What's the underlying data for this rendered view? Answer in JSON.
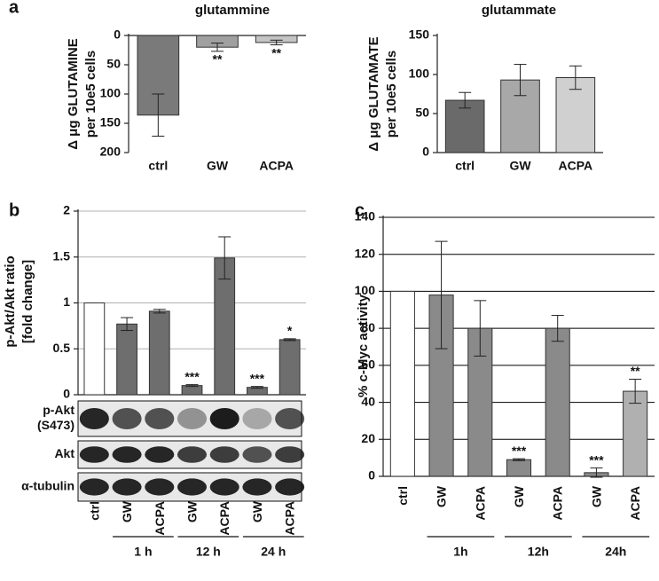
{
  "chart_data": [
    {
      "type": "bar",
      "panel_label": "a",
      "title": "glutammine",
      "y_label": [
        "Δ μg GLUTAMINE",
        "per 10e5 cells"
      ],
      "categories": [
        "ctrl",
        "GW",
        "ACPA"
      ],
      "values": [
        136,
        20,
        12
      ],
      "errors": [
        36,
        7,
        4
      ],
      "colors": [
        "#7a7a7a",
        "#a0a0a0",
        "#c4c4c4"
      ],
      "significance": [
        null,
        "**",
        "**"
      ],
      "ylim": [
        0,
        200
      ],
      "yticks": [
        0,
        50,
        100,
        150,
        200
      ],
      "y_inverted": true,
      "grid": false
    },
    {
      "type": "bar",
      "title": "glutammate",
      "y_label": [
        "Δ μg GLUTAMATE",
        "per 10e5 cells"
      ],
      "categories": [
        "ctrl",
        "GW",
        "ACPA"
      ],
      "values": [
        67,
        93,
        96
      ],
      "errors": [
        10,
        20,
        15
      ],
      "colors": [
        "#6a6a6a",
        "#a8a8a8",
        "#d0d0d0"
      ],
      "ylim": [
        0,
        150
      ],
      "yticks": [
        0,
        50,
        100,
        150
      ],
      "grid": false
    },
    {
      "type": "bar",
      "panel_label": "b",
      "y_label": [
        "p-Akt/Akt ratio",
        "[fold change]"
      ],
      "categories": [
        "ctrl",
        "GW",
        "ACPA",
        "GW",
        "ACPA",
        "GW",
        "ACPA"
      ],
      "values": [
        1,
        0.77,
        0.91,
        0.1,
        1.49,
        0.08,
        0.6
      ],
      "errors": [
        0,
        0.07,
        0.02,
        0.01,
        0.23,
        0.01,
        0.01
      ],
      "colors": [
        "#ffffff",
        "#6e6e6e",
        "#6e6e6e",
        "#6e6e6e",
        "#6e6e6e",
        "#6e6e6e",
        "#6e6e6e"
      ],
      "significance": [
        null,
        null,
        null,
        "***",
        null,
        "***",
        "*"
      ],
      "groups": [
        "1 h",
        "12 h",
        "24 h"
      ],
      "blot_labels": [
        [
          "p-Akt",
          "(S473)"
        ],
        [
          "Akt"
        ],
        [
          "α-tubulin"
        ]
      ],
      "ylim": [
        0,
        2
      ],
      "yticks": [
        0,
        0.5,
        1,
        1.5,
        2
      ],
      "grid": true,
      "grid_color": "#b0b0b0"
    },
    {
      "type": "bar",
      "panel_label": "c",
      "y_label": [
        "% c-Myc activity"
      ],
      "categories": [
        "ctrl",
        "GW",
        "ACPA",
        "GW",
        "ACPA",
        "GW",
        "ACPA"
      ],
      "values": [
        100,
        98,
        80,
        9,
        80,
        2,
        46
      ],
      "errors": [
        0,
        29,
        15,
        0.5,
        7,
        2.5,
        6.5
      ],
      "colors": [
        "#ffffff",
        "#8a8a8a",
        "#8a8a8a",
        "#8a8a8a",
        "#8a8a8a",
        "#8a8a8a",
        "#b0b0b0"
      ],
      "significance": [
        null,
        null,
        null,
        "***",
        null,
        "***",
        "**"
      ],
      "groups": [
        "1h",
        "12h",
        "24h"
      ],
      "ylim": [
        0,
        140
      ],
      "yticks": [
        0,
        20,
        40,
        60,
        80,
        100,
        120,
        140
      ],
      "grid": true,
      "grid_color": "#000000"
    }
  ]
}
